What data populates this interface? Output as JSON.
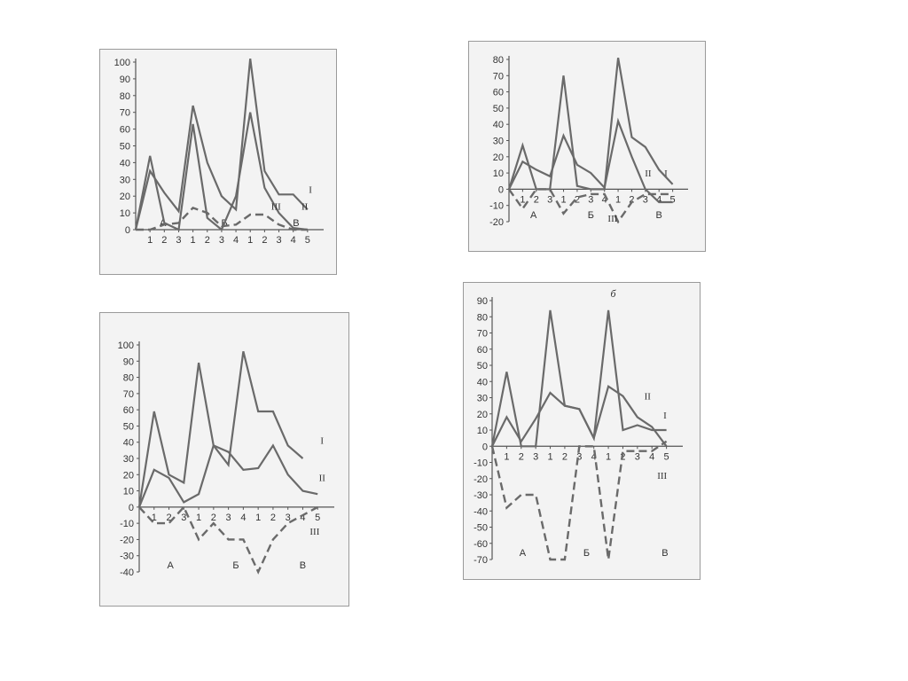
{
  "colors": {
    "line": "#6a6a6a",
    "axis": "#555555",
    "panel_bg": "#f3f3f3"
  },
  "chart_data": [
    {
      "type": "line",
      "title": "",
      "ylim": [
        0,
        100
      ],
      "yticks": [
        0,
        10,
        20,
        30,
        40,
        50,
        60,
        70,
        80,
        90,
        100
      ],
      "x": [
        0,
        1,
        2,
        3,
        4,
        5,
        6,
        7,
        8,
        9,
        10,
        11,
        12,
        13
      ],
      "x_tick_labels": [
        "1",
        "2",
        "3",
        "1",
        "2",
        "3",
        "4",
        "1",
        "2",
        "3",
        "4",
        "5"
      ],
      "groups": [
        {
          "label": "А",
          "x": 1.9
        },
        {
          "label": "Б",
          "x": 6.2
        },
        {
          "label": "В",
          "x": 11.2
        }
      ],
      "series": [
        {
          "name": "I",
          "dashed": false,
          "label_x": 12.2,
          "label_y": 22,
          "values": [
            0,
            35,
            22,
            11,
            74,
            40,
            20,
            12,
            102,
            35,
            21,
            21,
            12,
            null
          ]
        },
        {
          "name": "II",
          "dashed": false,
          "label_x": 11.8,
          "label_y": 12,
          "values": [
            0,
            44,
            4,
            0,
            63,
            7,
            0,
            20,
            70,
            25,
            10,
            1,
            0,
            null
          ]
        },
        {
          "name": "III",
          "dashed": true,
          "label_x": 9.8,
          "label_y": 12,
          "values": [
            0,
            0,
            3,
            4,
            13,
            10,
            2,
            3,
            9,
            9,
            3,
            0,
            0,
            null
          ]
        }
      ]
    },
    {
      "type": "line",
      "title": "",
      "ylim": [
        -20,
        80
      ],
      "yticks": [
        -20,
        -10,
        0,
        10,
        20,
        30,
        40,
        50,
        60,
        70,
        80
      ],
      "x": [
        0,
        1,
        2,
        3,
        4,
        5,
        6,
        7,
        8,
        9,
        10,
        11,
        12,
        13
      ],
      "x_tick_labels": [
        "1",
        "2",
        "3",
        "1",
        "2",
        "3",
        "4",
        "1",
        "2",
        "3",
        "4",
        "5"
      ],
      "groups": [
        {
          "label": "А",
          "x": 1.8
        },
        {
          "label": "Б",
          "x": 6.0
        },
        {
          "label": "В",
          "x": 11.0
        }
      ],
      "series": [
        {
          "name": "I",
          "dashed": false,
          "label_x": 11.5,
          "label_y": 8,
          "values": [
            0,
            17,
            12,
            8,
            33,
            15,
            10,
            1,
            42,
            20,
            0,
            -8,
            -8,
            null
          ]
        },
        {
          "name": "II",
          "dashed": false,
          "label_x": 10.2,
          "label_y": 8,
          "values": [
            0,
            27,
            0,
            0,
            70,
            2,
            0,
            0,
            81,
            32,
            26,
            12,
            3,
            null
          ]
        },
        {
          "name": "III",
          "dashed": true,
          "label_x": 7.6,
          "label_y": -20,
          "values": [
            0,
            -12,
            0,
            0,
            -15,
            -5,
            -3,
            -3,
            -20,
            -8,
            -3,
            -3,
            -3,
            null
          ]
        }
      ]
    },
    {
      "type": "line",
      "title": "",
      "ylim": [
        -40,
        100
      ],
      "yticks": [
        -40,
        -30,
        -20,
        -10,
        0,
        10,
        20,
        30,
        40,
        50,
        60,
        70,
        80,
        90,
        100
      ],
      "x": [
        0,
        1,
        2,
        3,
        4,
        5,
        6,
        7,
        8,
        9,
        10,
        11,
        12,
        13
      ],
      "x_tick_labels": [
        "1",
        "2",
        "3",
        "1",
        "2",
        "3",
        "4",
        "1",
        "2",
        "3",
        "4",
        "5"
      ],
      "groups": [
        {
          "label": "А",
          "x": 2.1
        },
        {
          "label": "Б",
          "x": 6.5
        },
        {
          "label": "В",
          "x": 11.0
        }
      ],
      "series": [
        {
          "name": "I",
          "dashed": false,
          "label_x": 12.3,
          "label_y": 39,
          "values": [
            0,
            59,
            20,
            15,
            89,
            38,
            26,
            96,
            59,
            59,
            38,
            30,
            null,
            null
          ]
        },
        {
          "name": "II",
          "dashed": false,
          "label_x": 12.3,
          "label_y": 16,
          "values": [
            0,
            23,
            18,
            3,
            8,
            38,
            34,
            23,
            24,
            38,
            20,
            10,
            8,
            null
          ]
        },
        {
          "name": "III",
          "dashed": true,
          "label_x": 11.8,
          "label_y": -17,
          "values": [
            0,
            -10,
            -10,
            0,
            -20,
            -10,
            -20,
            -20,
            -40,
            -20,
            -10,
            -5,
            0,
            null
          ]
        }
      ]
    },
    {
      "type": "line",
      "title": "б",
      "ylim": [
        -70,
        90
      ],
      "yticks": [
        -70,
        -60,
        -50,
        -40,
        -30,
        -20,
        -10,
        0,
        10,
        20,
        30,
        40,
        50,
        60,
        70,
        80,
        90
      ],
      "x": [
        0,
        1,
        2,
        3,
        4,
        5,
        6,
        7,
        8,
        9,
        10,
        11,
        12,
        13
      ],
      "x_tick_labels": [
        "1",
        "2",
        "3",
        "1",
        "2",
        "3",
        "4",
        "1",
        "2",
        "3",
        "4",
        "5"
      ],
      "groups": [
        {
          "label": "А",
          "x": 2.1
        },
        {
          "label": "Б",
          "x": 6.5
        },
        {
          "label": "В",
          "x": 11.9
        }
      ],
      "series": [
        {
          "name": "I",
          "dashed": false,
          "label_x": 11.9,
          "label_y": 17,
          "values": [
            0,
            46,
            0,
            0,
            84,
            25,
            23,
            5,
            84,
            10,
            13,
            10,
            10,
            null
          ]
        },
        {
          "name": "II",
          "dashed": false,
          "label_x": 10.7,
          "label_y": 29,
          "values": [
            0,
            18,
            3,
            17,
            33,
            25,
            23,
            5,
            37,
            31,
            18,
            12,
            0,
            null
          ]
        },
        {
          "name": "III",
          "dashed": true,
          "label_x": 11.7,
          "label_y": -20,
          "values": [
            0,
            -38,
            -30,
            -30,
            -70,
            -70,
            0,
            0,
            -70,
            -3,
            -3,
            -3,
            3,
            null
          ]
        }
      ]
    }
  ]
}
